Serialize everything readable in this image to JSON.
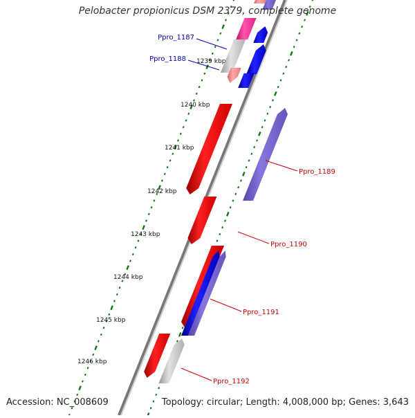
{
  "title": "Pelobacter propionicus DSM 2379, complete genome",
  "footer": {
    "accession": "Accession: NC_008609",
    "topology": "Topology: circular; Length: 4,008,000 bp; Genes: 3,643"
  },
  "colors": {
    "backbone": "#888888",
    "forward": "#ee1111",
    "reverse": "#1111dd",
    "reverse_light": "#7766cc",
    "pseudo": "#c8c8c8",
    "pink": "#ee4488",
    "light_red": "#ee8888",
    "tick": "#117711",
    "label_left": "#0000bb",
    "label_right": "#cc0000"
  },
  "scale_labels": [
    "1239 kbp",
    "1240 kbp",
    "1241 kbp",
    "1242 kbp",
    "1243 kbp",
    "1244 kbp",
    "1245 kbp",
    "1246 kbp"
  ],
  "genes": [
    {
      "name": "Ppro_1187",
      "strand": "-",
      "side": "left"
    },
    {
      "name": "Ppro_1188",
      "strand": "-",
      "side": "left"
    },
    {
      "name": "Ppro_1189",
      "strand": "+",
      "side": "right"
    },
    {
      "name": "Ppro_1190",
      "strand": "+",
      "side": "right"
    },
    {
      "name": "Ppro_1191",
      "strand": "+",
      "side": "right"
    },
    {
      "name": "Ppro_1192",
      "strand": "+",
      "side": "right"
    }
  ]
}
